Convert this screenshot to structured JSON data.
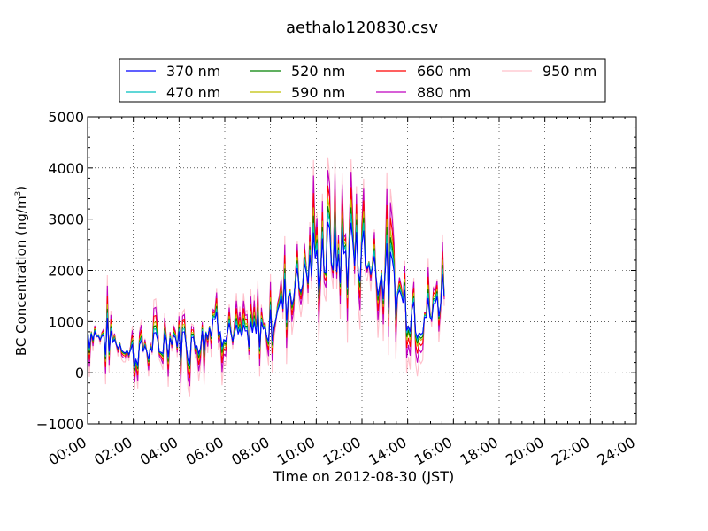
{
  "chart_data": {
    "type": "line",
    "title": "aethalo120830.csv",
    "xlabel": "Time on 2012-08-30 (JST)",
    "ylabel": "BC Concentration (ng/m³)",
    "ylabel_main": "BC Concentration (ng/m",
    "ylabel_sup": "3",
    "ylabel_end": ")",
    "xlim": [
      "00:00",
      "24:00"
    ],
    "ylim": [
      -1000,
      5000
    ],
    "xticks": [
      "00:00",
      "02:00",
      "04:00",
      "06:00",
      "08:00",
      "10:00",
      "12:00",
      "14:00",
      "16:00",
      "18:00",
      "20:00",
      "22:00",
      "24:00"
    ],
    "yticks": [
      -1000,
      0,
      1000,
      2000,
      3000,
      4000,
      5000
    ],
    "ytick_labels": [
      "−1000",
      "0",
      "1000",
      "2000",
      "3000",
      "4000",
      "5000"
    ],
    "grid": true,
    "legend_placement": "top, above plot, 4 columns",
    "series": [
      {
        "name": "370 nm",
        "color": "#0000ff",
        "amp": 0.55,
        "off": 0.92
      },
      {
        "name": "470 nm",
        "color": "#00bfbf",
        "amp": 0.65,
        "off": 0.95
      },
      {
        "name": "520 nm",
        "color": "#008000",
        "amp": 0.75,
        "off": 0.96
      },
      {
        "name": "590 nm",
        "color": "#bfbf00",
        "amp": 0.85,
        "off": 0.98
      },
      {
        "name": "660 nm",
        "color": "#ff0000",
        "amp": 1.05,
        "off": 1.0
      },
      {
        "name": "880 nm",
        "color": "#bf00bf",
        "amp": 1.3,
        "off": 1.02
      },
      {
        "name": "950 nm",
        "color": "#ffc0cb",
        "amp": 1.6,
        "off": 1.0
      }
    ],
    "trend": {
      "time_hours": [
        0.0,
        0.5,
        1.0,
        1.5,
        2.0,
        2.5,
        3.0,
        3.5,
        4.0,
        4.5,
        5.0,
        5.5,
        6.0,
        6.5,
        7.0,
        7.5,
        8.0,
        8.5,
        9.0,
        9.5,
        10.0,
        10.5,
        11.0,
        11.5,
        12.0,
        12.5,
        13.0,
        13.5,
        14.0,
        14.5,
        15.0,
        15.5,
        15.6
      ],
      "values": [
        900,
        800,
        700,
        600,
        400,
        500,
        500,
        700,
        700,
        600,
        800,
        1100,
        1000,
        700,
        700,
        900,
        1000,
        1500,
        1900,
        2200,
        2300,
        2600,
        2400,
        2600,
        2600,
        2300,
        2100,
        1800,
        1400,
        1200,
        1200,
        1700,
        1800
      ]
    }
  }
}
